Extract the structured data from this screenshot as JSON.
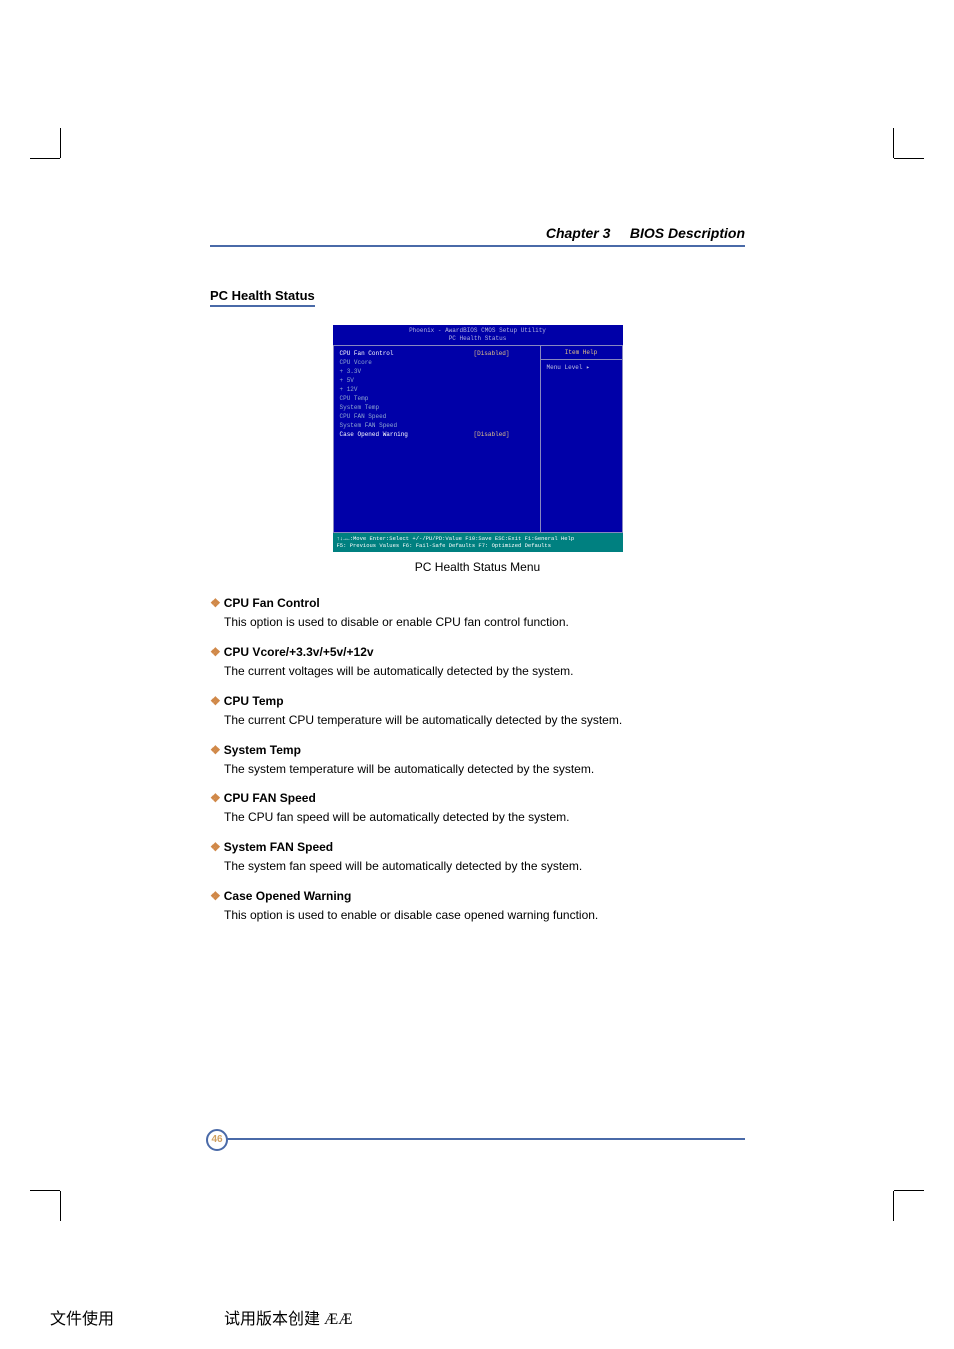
{
  "header": {
    "chapter": "Chapter 3",
    "title": "BIOS Description"
  },
  "section_title": "PC Health Status",
  "bios": {
    "title_line1": "Phoenix - AwardBIOS CMOS Setup Utility",
    "title_line2": "PC Health Status",
    "help_head": "Item Help",
    "help_body": "Menu Level   ▸",
    "rows": [
      {
        "label": "CPU Fan Control",
        "val": "[Disabled]"
      },
      {
        "label": "CPU Vcore",
        "val": ""
      },
      {
        "label": "+ 3.3V",
        "val": ""
      },
      {
        "label": "+ 5V",
        "val": ""
      },
      {
        "label": "+ 12V",
        "val": ""
      },
      {
        "label": "CPU Temp",
        "val": ""
      },
      {
        "label": "System Temp",
        "val": ""
      },
      {
        "label": "CPU FAN Speed",
        "val": ""
      },
      {
        "label": "System FAN Speed",
        "val": ""
      },
      {
        "label": "Case Opened Warning",
        "val": "[Disabled]"
      }
    ],
    "footer_line1": "↑↓→←:Move  Enter:Select  +/-/PU/PD:Value  F10:Save  ESC:Exit  F1:General Help",
    "footer_line2": "F5: Previous Values    F6: Fail-Safe Defaults    F7: Optimized Defaults"
  },
  "caption": "PC Health Status Menu",
  "items": [
    {
      "title": "CPU Fan Control",
      "body": "This option is used to disable or enable CPU fan control function."
    },
    {
      "title": "CPU Vcore/+3.3v/+5v/+12v",
      "body": "The current voltages will be automatically detected by the system."
    },
    {
      "title": "CPU Temp",
      "body": "The current CPU temperature will be automatically detected by the system."
    },
    {
      "title": "System Temp",
      "body": "The system temperature will be automatically detected by the system."
    },
    {
      "title": "CPU FAN Speed",
      "body": "The CPU fan speed will be automatically detected by the system."
    },
    {
      "title": "System FAN Speed",
      "body": "The system fan speed will be automatically detected by the system."
    },
    {
      "title": "Case Opened Warning",
      "body": "This option is used to enable or disable case opened warning function."
    }
  ],
  "page_number": "46",
  "footer": {
    "prefix": "文件使用",
    "mid": "试用版本创建  ÆÆ",
    "link": ""
  }
}
